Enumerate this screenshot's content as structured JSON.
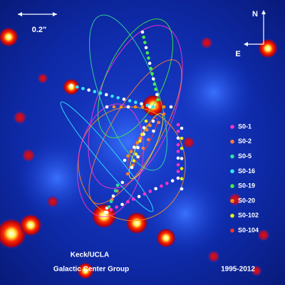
{
  "scale_bar": {
    "label": "0.2\""
  },
  "compass": {
    "north": "N",
    "east": "E"
  },
  "legend": [
    {
      "name": "S0-1",
      "color": "#ff33cc"
    },
    {
      "name": "S0-2",
      "color": "#ff7a3d"
    },
    {
      "name": "S0-5",
      "color": "#33dd99"
    },
    {
      "name": "S0-16",
      "color": "#33e6ff"
    },
    {
      "name": "S0-19",
      "color": "#44ee44"
    },
    {
      "name": "S0-20",
      "color": "#ff8c1a"
    },
    {
      "name": "S0-102",
      "color": "#eeee22"
    },
    {
      "name": "S0-104",
      "color": "#ff3322"
    }
  ],
  "credits": {
    "line1": "Keck/UCLA",
    "line2": "Galactic Center Group"
  },
  "date_range": "1995-2012"
}
